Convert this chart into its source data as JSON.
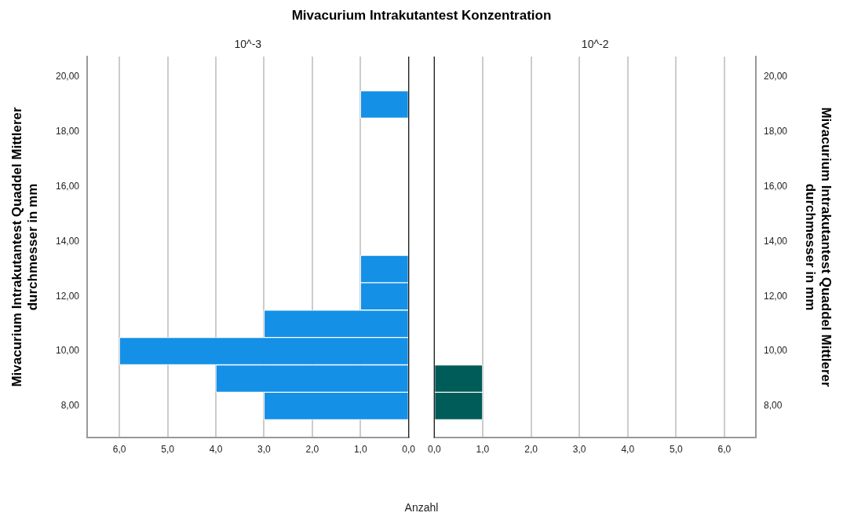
{
  "chart_data": [
    {
      "type": "histogram",
      "orientation": "horizontal",
      "title": "Mivacurium Intrakutantest Konzentration",
      "subtitle": "10^-3",
      "xlabel": "Anzahl",
      "ylabel": "Mivacurium Intrakutantest Quaddel Mittlerer durchmesser in mm",
      "bins": [
        7.5,
        8.5,
        9.5,
        10.5,
        11.5,
        12.5,
        13.5,
        14.5,
        15.5,
        16.5,
        17.5,
        18.5,
        19.5
      ],
      "values": [
        3,
        4,
        6,
        3,
        1,
        1,
        0,
        0,
        0,
        0,
        0,
        1
      ],
      "color": "#1490e6",
      "xlim": [
        6.67,
        0
      ],
      "xticks": [
        {
          "value": 6,
          "label": "6,0"
        },
        {
          "value": 5,
          "label": "5,0"
        },
        {
          "value": 4,
          "label": "4,0"
        },
        {
          "value": 3,
          "label": "3,0"
        },
        {
          "value": 2,
          "label": "2,0"
        },
        {
          "value": 1,
          "label": "1,0"
        },
        {
          "value": 0,
          "label": "0,0"
        }
      ],
      "ylim": [
        6.85,
        20.75
      ],
      "yticks": [
        {
          "value": 8,
          "label": "8,00"
        },
        {
          "value": 10,
          "label": "10,00"
        },
        {
          "value": 12,
          "label": "12,00"
        },
        {
          "value": 14,
          "label": "14,00"
        },
        {
          "value": 16,
          "label": "16,00"
        },
        {
          "value": 18,
          "label": "18,00"
        },
        {
          "value": 20,
          "label": "20,00"
        }
      ],
      "grid": "x"
    },
    {
      "type": "histogram",
      "orientation": "horizontal",
      "subtitle": "10^-2",
      "ylabel": "Mivacurium Intrakutantest Quaddel Mittlerer durchmesser in mm",
      "bins": [
        7.5,
        8.5,
        9.5,
        10.5,
        11.5,
        12.5,
        13.5,
        14.5,
        15.5,
        16.5,
        17.5,
        18.5,
        19.5
      ],
      "values": [
        1,
        1,
        0,
        0,
        0,
        0,
        0,
        0,
        0,
        0,
        0,
        0
      ],
      "color": "#005c58",
      "xlim": [
        0,
        6.65
      ],
      "xticks": [
        {
          "value": 0,
          "label": "0,0"
        },
        {
          "value": 1,
          "label": "1,0"
        },
        {
          "value": 2,
          "label": "2,0"
        },
        {
          "value": 3,
          "label": "3,0"
        },
        {
          "value": 4,
          "label": "4,0"
        },
        {
          "value": 5,
          "label": "5,0"
        },
        {
          "value": 6,
          "label": "6,0"
        }
      ],
      "ylim": [
        6.85,
        20.75
      ],
      "yticks": [
        {
          "value": 8,
          "label": "8,00"
        },
        {
          "value": 10,
          "label": "10,00"
        },
        {
          "value": 12,
          "label": "12,00"
        },
        {
          "value": 14,
          "label": "14,00"
        },
        {
          "value": 16,
          "label": "16,00"
        },
        {
          "value": 18,
          "label": "18,00"
        },
        {
          "value": 20,
          "label": "20,00"
        }
      ],
      "grid": "x"
    }
  ]
}
